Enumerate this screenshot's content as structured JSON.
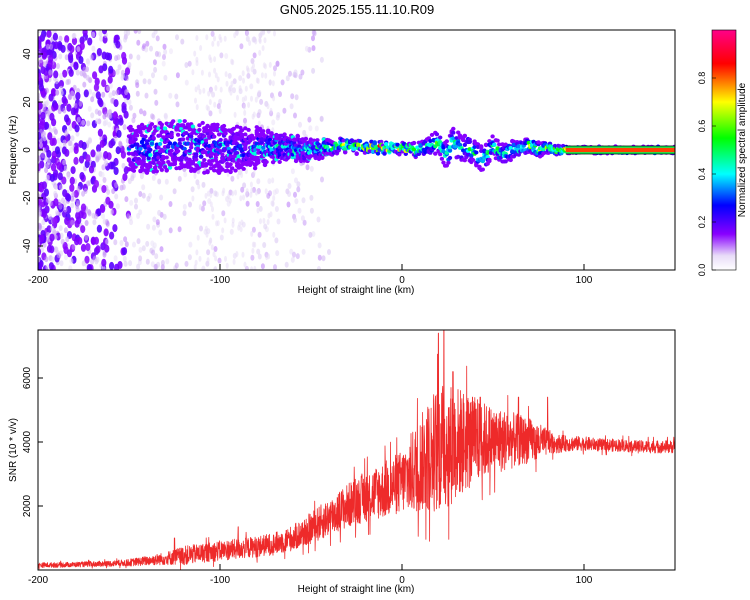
{
  "figure_title": "GN05.2025.155.11.10.R09",
  "chart_data": [
    {
      "type": "heatmap",
      "title": "GN05.2025.155.11.10.R09",
      "xlabel": "Height of straight line (km)",
      "ylabel": "Frequency (Hz)",
      "xlim": [
        -200,
        150
      ],
      "ylim": [
        -50,
        50
      ],
      "xticks": [
        -200,
        -100,
        0,
        100
      ],
      "yticks": [
        -40,
        -20,
        0,
        20,
        40
      ],
      "grid": false,
      "colorbar": {
        "label": "Normalized spectral amplitude",
        "ticks": [
          0.0,
          0.2,
          0.4,
          0.6,
          0.8
        ],
        "range": [
          0,
          1
        ],
        "colors": [
          "#ffffff",
          "#d9c8f2",
          "#8800ff",
          "#0000ff",
          "#00ffff",
          "#00ff00",
          "#ffff00",
          "#ff0000",
          "#ff0088"
        ]
      },
      "ridge": {
        "x": [
          -150,
          -140,
          -130,
          -120,
          -110,
          -100,
          -90,
          -80,
          -70,
          -60,
          -50,
          -40,
          -30,
          -20,
          -10,
          0,
          10,
          15,
          20,
          25,
          28,
          32,
          36,
          40,
          45,
          50,
          55,
          60,
          65,
          70,
          75,
          80,
          85,
          90,
          100,
          120,
          150
        ],
        "y": [
          0,
          1,
          2,
          2,
          1,
          1,
          0,
          1,
          1,
          1,
          0,
          1,
          2,
          1,
          1,
          1,
          0,
          2,
          3,
          -2,
          4,
          0,
          1,
          -1,
          -4,
          2,
          -2,
          0,
          1,
          2,
          0,
          1,
          0,
          0,
          0,
          0,
          0
        ],
        "amp": [
          0.3,
          0.35,
          0.35,
          0.35,
          0.35,
          0.35,
          0.35,
          0.35,
          0.45,
          0.5,
          0.5,
          0.6,
          0.75,
          0.85,
          0.85,
          0.85,
          0.6,
          0.55,
          0.6,
          0.5,
          0.55,
          0.5,
          0.55,
          0.55,
          0.6,
          0.6,
          0.55,
          0.55,
          0.6,
          0.7,
          0.75,
          0.75,
          0.8,
          0.9,
          0.95,
          0.95,
          0.95
        ],
        "width": [
          9,
          10,
          10,
          10,
          10,
          10,
          9,
          8,
          6,
          5,
          4,
          3,
          2.5,
          2,
          2,
          2,
          3,
          4,
          5,
          6,
          6,
          6,
          5,
          5,
          5,
          4,
          4,
          4,
          3,
          3,
          3,
          2,
          2,
          1.5,
          1.2,
          1.2,
          1.2
        ]
      }
    },
    {
      "type": "line",
      "xlabel": "Height of straight line (km)",
      "ylabel": "SNR (10 * v/v)",
      "xlim": [
        -200,
        150
      ],
      "ylim": [
        0,
        7500
      ],
      "xticks": [
        -200,
        -100,
        0,
        100
      ],
      "yticks": [
        2000,
        4000,
        6000
      ],
      "grid": false,
      "color": "#ee2a2a",
      "envelope": {
        "x": [
          -200,
          -180,
          -160,
          -150,
          -140,
          -130,
          -120,
          -110,
          -100,
          -90,
          -80,
          -70,
          -60,
          -50,
          -40,
          -30,
          -20,
          -10,
          0,
          5,
          10,
          15,
          20,
          25,
          30,
          35,
          40,
          45,
          50,
          55,
          60,
          65,
          70,
          75,
          80,
          85,
          90,
          100,
          110,
          120,
          130,
          140,
          150
        ],
        "center": [
          150,
          170,
          200,
          230,
          290,
          360,
          450,
          530,
          600,
          660,
          730,
          820,
          1000,
          1300,
          1650,
          2000,
          2300,
          2500,
          2750,
          3000,
          3300,
          3600,
          3800,
          3900,
          4000,
          4000,
          4050,
          4050,
          4050,
          4050,
          4050,
          4050,
          4050,
          4000,
          4000,
          3950,
          3950,
          3950,
          3900,
          3900,
          3850,
          3850,
          3850
        ],
        "spread": [
          80,
          80,
          90,
          110,
          150,
          200,
          300,
          300,
          320,
          320,
          330,
          350,
          400,
          500,
          600,
          700,
          800,
          900,
          1000,
          1300,
          1500,
          1800,
          2000,
          2000,
          1800,
          1600,
          1400,
          1200,
          1100,
          1000,
          900,
          800,
          700,
          600,
          400,
          300,
          250,
          220,
          200,
          200,
          200,
          200,
          200
        ]
      },
      "peaks": [
        {
          "x": 20,
          "y": 7400
        },
        {
          "x": 23,
          "y": 7500
        },
        {
          "x": 28,
          "y": 6200
        },
        {
          "x": 43,
          "y": 5400
        },
        {
          "x": 64,
          "y": 5400
        },
        {
          "x": 80,
          "y": 5400
        },
        {
          "x": -90,
          "y": 1350
        },
        {
          "x": -125,
          "y": 1000
        }
      ]
    }
  ]
}
